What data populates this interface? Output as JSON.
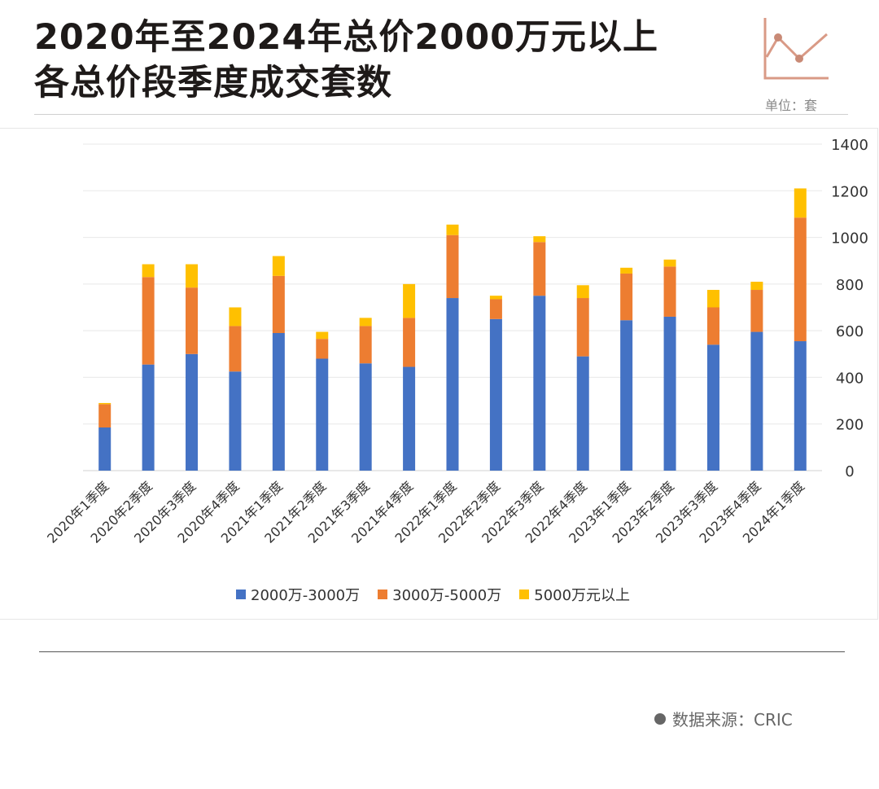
{
  "header": {
    "title_line1": "2020年至2024年总价2000万元以上",
    "title_line2": "各总价段季度成交套数",
    "unit_label": "单位：套"
  },
  "chart_data": {
    "type": "bar",
    "stacked": true,
    "categories": [
      "2020年1季度",
      "2020年2季度",
      "2020年3季度",
      "2020年4季度",
      "2021年1季度",
      "2021年2季度",
      "2021年3季度",
      "2021年4季度",
      "2022年1季度",
      "2022年2季度",
      "2022年3季度",
      "2022年4季度",
      "2023年1季度",
      "2023年2季度",
      "2023年3季度",
      "2023年4季度",
      "2024年1季度"
    ],
    "series": [
      {
        "name": "2000万-3000万",
        "color": "#4472c4",
        "values": [
          185,
          455,
          500,
          425,
          590,
          480,
          460,
          445,
          740,
          650,
          750,
          490,
          645,
          660,
          540,
          595,
          555
        ]
      },
      {
        "name": "3000万-5000万",
        "color": "#ed7d31",
        "values": [
          100,
          375,
          285,
          195,
          245,
          85,
          160,
          210,
          270,
          85,
          230,
          250,
          200,
          215,
          160,
          180,
          530
        ]
      },
      {
        "name": "5000万元以上",
        "color": "#ffc000",
        "values": [
          5,
          55,
          100,
          80,
          85,
          30,
          35,
          145,
          45,
          15,
          25,
          55,
          25,
          30,
          75,
          35,
          125
        ]
      }
    ],
    "ylim": [
      0,
      1400
    ],
    "yticks": [
      0,
      200,
      400,
      600,
      800,
      1000,
      1200,
      1400
    ],
    "y_axis_position": "right",
    "grid": true,
    "legend_position": "bottom"
  },
  "footer": {
    "source_label": "数据来源：CRIC"
  }
}
